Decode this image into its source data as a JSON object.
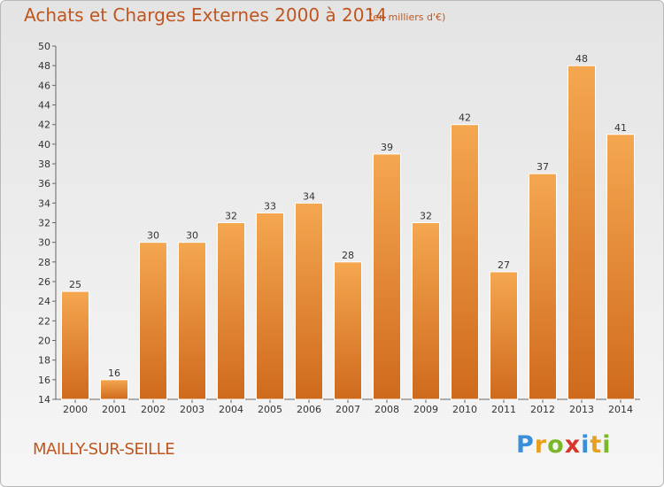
{
  "header": {
    "title": "Achats et Charges Externes 2000 à 2014",
    "unit": "(en milliers d'€)"
  },
  "footer": {
    "location": "MAILLY-SUR-SEILLE",
    "logo_text": "Proxiti",
    "logo_letters": [
      {
        "char": "P",
        "color": "#3a8fd8"
      },
      {
        "char": "r",
        "color": "#e8a020"
      },
      {
        "char": "o",
        "color": "#7ab829"
      },
      {
        "char": "x",
        "color": "#d8362a"
      },
      {
        "char": "i",
        "color": "#3a8fd8"
      },
      {
        "char": "t",
        "color": "#e8a020"
      },
      {
        "char": "i",
        "color": "#7ab829"
      }
    ]
  },
  "colors": {
    "title": "#c0561f",
    "bar_top": "#f5a750",
    "bar_bottom": "#cf6a1c",
    "bar_edge": "#ffffff"
  },
  "chart_data": {
    "type": "bar",
    "title": "Achats et Charges Externes 2000 à 2014",
    "subtitle": "(en milliers d'€)",
    "xlabel": "",
    "ylabel": "",
    "categories": [
      "2000",
      "2001",
      "2002",
      "2003",
      "2004",
      "2005",
      "2006",
      "2007",
      "2008",
      "2009",
      "2010",
      "2011",
      "2012",
      "2013",
      "2014"
    ],
    "values": [
      25,
      16,
      30,
      30,
      32,
      33,
      34,
      28,
      39,
      32,
      42,
      27,
      37,
      48,
      41
    ],
    "ylim": [
      14,
      50
    ],
    "yticks": [
      14,
      16,
      18,
      20,
      22,
      24,
      26,
      28,
      30,
      32,
      34,
      36,
      38,
      40,
      42,
      44,
      46,
      48,
      50
    ],
    "grid": false,
    "data_labels": true,
    "legend": "none"
  }
}
